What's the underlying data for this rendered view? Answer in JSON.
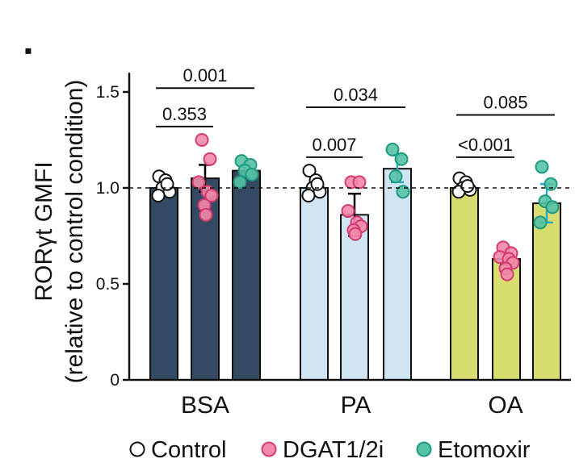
{
  "panel_marker": "▪",
  "legend": [
    {
      "label": "Control",
      "fill": "#ffffff"
    },
    {
      "label": "DGAT1/2i",
      "fill": "#f28aaa"
    },
    {
      "label": "Etomoxir",
      "fill": "#56c2a5"
    }
  ],
  "chart_data": {
    "type": "bar",
    "title": "",
    "ylabel_line1": "RORγt GMFI",
    "ylabel_line2": "(relative to control condition)",
    "xlabel": "",
    "ylim": [
      0,
      1.6
    ],
    "yticks": [
      0,
      0.5,
      1.0,
      1.5
    ],
    "ytick_labels": [
      "0",
      "0.5",
      "1.0",
      "1.5"
    ],
    "reference_line": 1.0,
    "categories": [
      "BSA",
      "PA",
      "OA"
    ],
    "category_colors": [
      "#334a62",
      "#d1e4f2",
      "#d7de6f"
    ],
    "series": [
      {
        "name": "Control",
        "point_color": "#ffffff",
        "error_color": "#000000",
        "values": [
          1.0,
          1.0,
          1.0
        ],
        "errors": [
          0.02,
          0.02,
          0.01
        ],
        "points": [
          [
            1.06,
            1.04,
            1.0,
            0.98,
            0.96,
            1.02
          ],
          [
            1.09,
            1.04,
            1.0,
            0.98,
            0.96,
            1.02
          ],
          [
            1.05,
            1.03,
            1.0,
            0.99,
            0.98,
            1.01
          ]
        ]
      },
      {
        "name": "DGAT1/2i",
        "point_color": "#f28aaa",
        "error_color": "#000000",
        "values": [
          1.05,
          0.86,
          0.63
        ],
        "errors": [
          0.07,
          0.11,
          0.03
        ],
        "points": [
          [
            1.25,
            1.15,
            1.03,
            0.98,
            0.96,
            0.91,
            0.86
          ],
          [
            1.03,
            1.03,
            0.88,
            0.82,
            0.8,
            0.78,
            0.76
          ],
          [
            0.69,
            0.66,
            0.64,
            0.63,
            0.61,
            0.58,
            0.55
          ]
        ]
      },
      {
        "name": "Etomoxir",
        "point_color": "#56c2a5",
        "error_color": "#2aa9c9",
        "values": [
          1.09,
          1.1,
          0.92
        ],
        "errors": [
          0.03,
          0.07,
          0.1
        ],
        "points": [
          [
            1.14,
            1.12,
            1.09,
            1.07,
            1.03
          ],
          [
            1.2,
            1.15,
            1.06,
            0.98
          ],
          [
            1.11,
            1.02,
            0.93,
            0.9,
            0.82
          ]
        ]
      }
    ],
    "significance": [
      {
        "category": 0,
        "from": 0,
        "to": 1,
        "label": "0.353",
        "y": 1.32
      },
      {
        "category": 0,
        "from": 0,
        "to": 2,
        "label": "0.001",
        "y": 1.52
      },
      {
        "category": 1,
        "from": 0,
        "to": 1,
        "label": "0.007",
        "y": 1.16
      },
      {
        "category": 1,
        "from": 0,
        "to": 2,
        "label": "0.034",
        "y": 1.42
      },
      {
        "category": 2,
        "from": 0,
        "to": 1,
        "label": "<0.001",
        "y": 1.16
      },
      {
        "category": 2,
        "from": 0,
        "to": 2,
        "label": "0.085",
        "y": 1.38
      }
    ]
  }
}
